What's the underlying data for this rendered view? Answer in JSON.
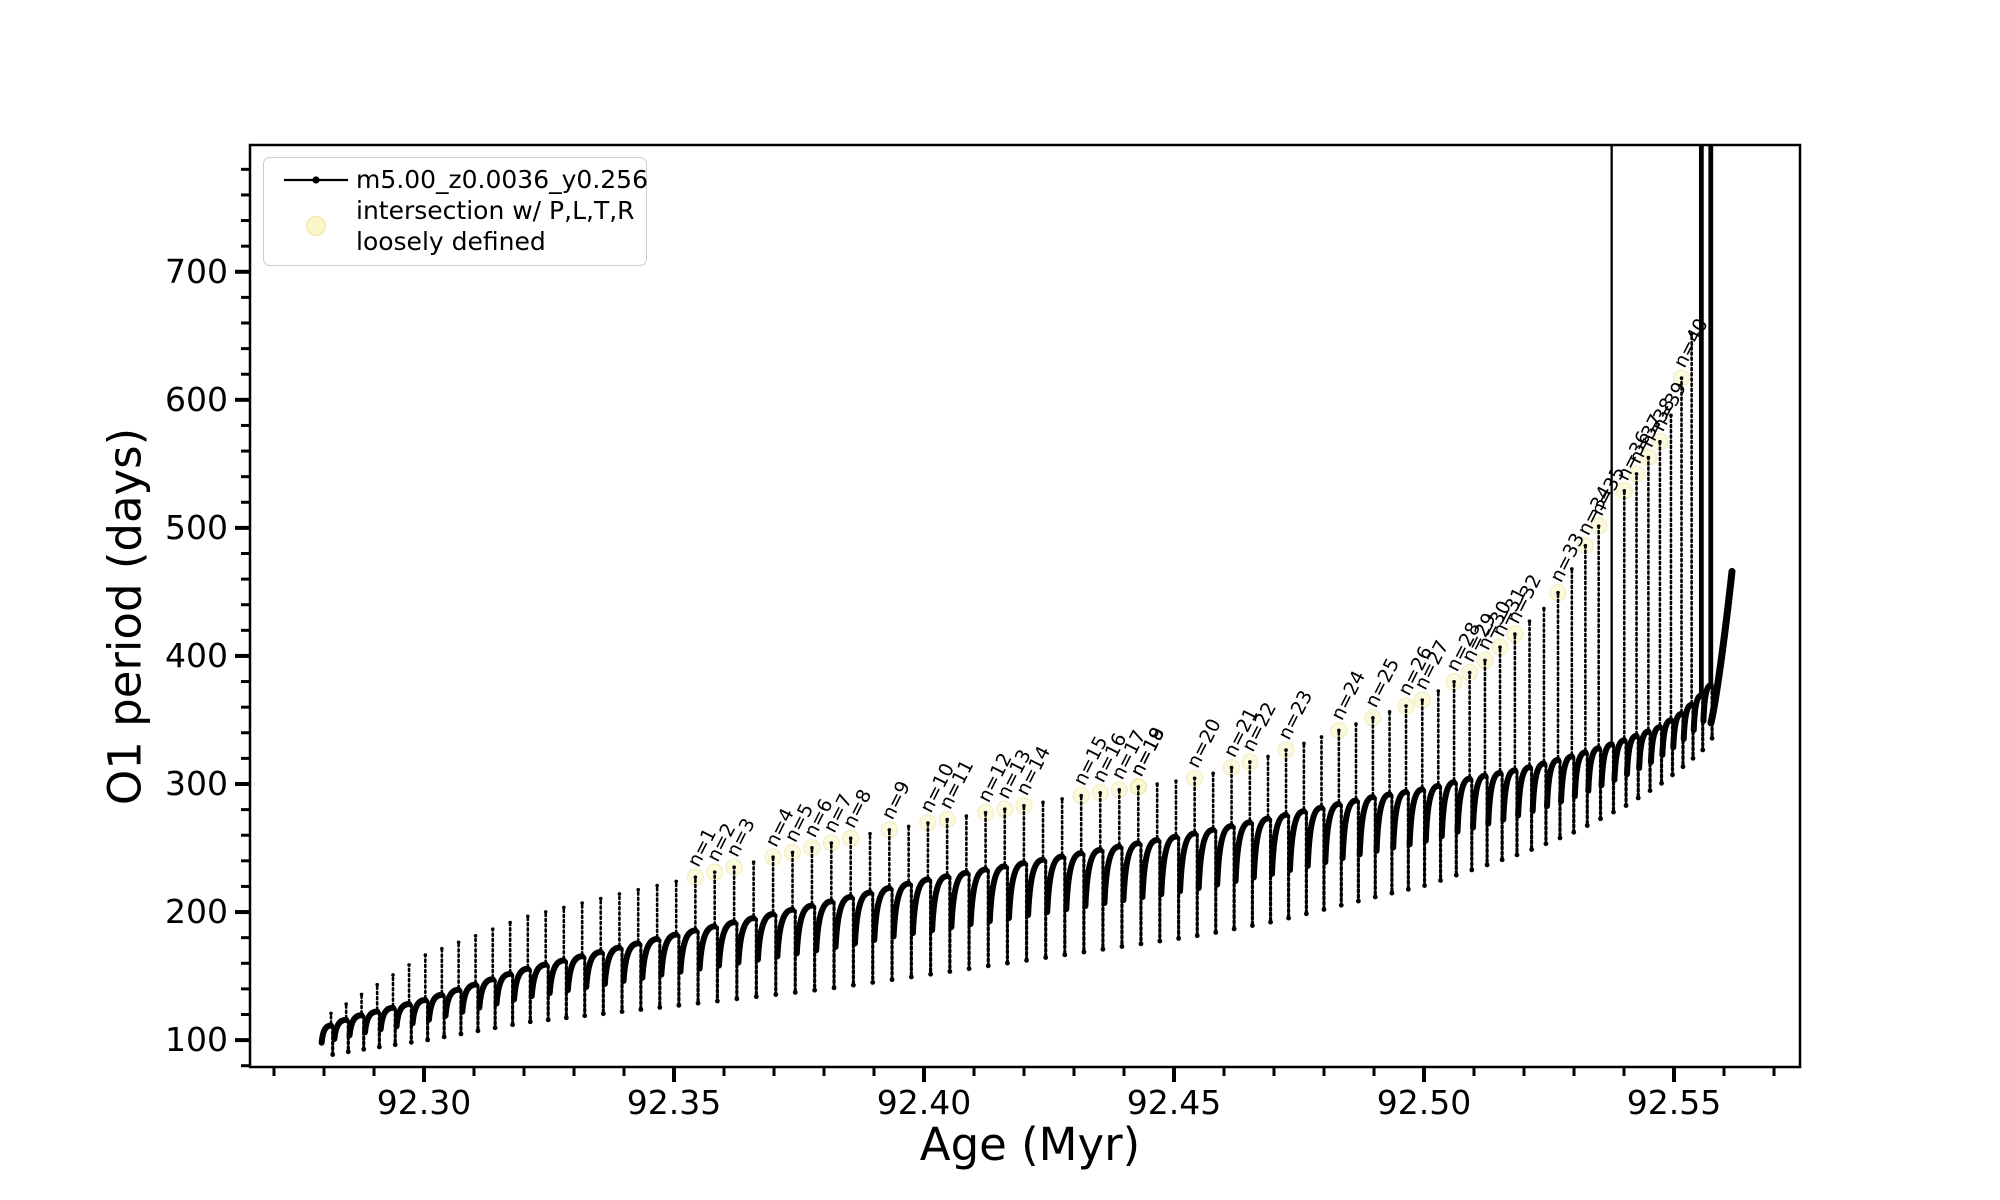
{
  "figure": {
    "background": "#ffffff",
    "accent_black": "#000000"
  },
  "chart_data": {
    "type": "line",
    "title": "",
    "xlabel": "Age (Myr)",
    "ylabel": "O1 period (days)",
    "x_range": [
      92.2652,
      92.5752
    ],
    "y_range": [
      79,
      799
    ],
    "x_ticks_major": [
      92.3,
      92.35,
      92.4,
      92.45,
      92.5,
      92.55
    ],
    "x_tick_labels": [
      "92.30",
      "92.35",
      "92.40",
      "92.45",
      "92.50",
      "92.55"
    ],
    "x_minor_step": 0.01,
    "y_ticks_major": [
      100,
      200,
      300,
      400,
      500,
      600,
      700
    ],
    "y_tick_labels": [
      "100",
      "200",
      "300",
      "400",
      "500",
      "600",
      "700"
    ],
    "y_minor_step": 20,
    "grid": false,
    "legend": {
      "position": "upper-left",
      "entries": [
        {
          "marker": "line-dot",
          "color": "#000000",
          "label": "m5.00_z0.0036_y0.256"
        },
        {
          "marker": "circle",
          "color": "#fbf6c2",
          "edge": "#efe8ad",
          "label_lines": [
            "intersection w/ P,L,T,R",
            "loosely defined"
          ]
        }
      ]
    },
    "series": {
      "name": "m5.00_z0.0036_y0.256",
      "color": "#000000",
      "start_age": 92.279,
      "end_age": 92.5578,
      "period_anchors": [
        [
          92.279,
          0.003
        ],
        [
          92.3,
          0.0033
        ],
        [
          92.33,
          0.0037
        ],
        [
          92.36,
          0.0039
        ],
        [
          92.44,
          0.0038
        ],
        [
          92.47,
          0.0036
        ],
        [
          92.5,
          0.0032
        ],
        [
          92.52,
          0.0029
        ],
        [
          92.535,
          0.0026
        ],
        [
          92.545,
          0.0023
        ],
        [
          92.552,
          0.002
        ],
        [
          92.558,
          0.0018
        ]
      ],
      "spike_peak_anchors": [
        [
          92.279,
          115
        ],
        [
          92.286,
          132
        ],
        [
          92.3,
          166
        ],
        [
          92.32,
          196
        ],
        [
          92.34,
          215
        ],
        [
          92.354,
          227
        ],
        [
          92.37,
          243
        ],
        [
          92.39,
          262
        ],
        [
          92.41,
          276
        ],
        [
          92.43,
          290
        ],
        [
          92.455,
          305
        ],
        [
          92.47,
          323
        ],
        [
          92.49,
          352
        ],
        [
          92.5,
          366
        ],
        [
          92.51,
          389
        ],
        [
          92.517,
          413
        ],
        [
          92.526,
          444
        ],
        [
          92.533,
          491
        ],
        [
          92.541,
          534
        ],
        [
          92.5475,
          569
        ],
        [
          92.5506,
          600
        ],
        [
          92.5533,
          651
        ],
        [
          92.556,
          655
        ],
        [
          92.558,
          560
        ]
      ],
      "shoulder_anchors": [
        [
          92.279,
          108
        ],
        [
          92.286,
          118
        ],
        [
          92.3,
          131
        ],
        [
          92.32,
          155
        ],
        [
          92.35,
          182
        ],
        [
          92.38,
          207
        ],
        [
          92.4,
          225
        ],
        [
          92.43,
          245
        ],
        [
          92.455,
          262
        ],
        [
          92.47,
          274
        ],
        [
          92.49,
          290
        ],
        [
          92.5,
          296
        ],
        [
          92.51,
          305
        ],
        [
          92.52,
          312
        ],
        [
          92.53,
          322
        ],
        [
          92.54,
          334
        ],
        [
          92.547,
          344
        ],
        [
          92.552,
          356
        ],
        [
          92.5565,
          373
        ],
        [
          92.558,
          380
        ]
      ],
      "dip_anchors": [
        [
          92.279,
          87
        ],
        [
          92.286,
          92
        ],
        [
          92.3,
          100
        ],
        [
          92.32,
          114
        ],
        [
          92.35,
          127
        ],
        [
          92.38,
          140
        ],
        [
          92.4,
          151
        ],
        [
          92.43,
          168
        ],
        [
          92.455,
          182
        ],
        [
          92.47,
          193
        ],
        [
          92.49,
          212
        ],
        [
          92.5,
          221
        ],
        [
          92.51,
          234
        ],
        [
          92.52,
          247
        ],
        [
          92.53,
          263
        ],
        [
          92.54,
          283
        ],
        [
          92.547,
          300
        ],
        [
          92.552,
          315
        ],
        [
          92.5565,
          330
        ],
        [
          92.558,
          340
        ]
      ],
      "offscale_spikes": [
        {
          "age": 92.5366,
          "style": "thin",
          "top_days": 799
        },
        {
          "age": 92.5553,
          "style": "thick",
          "top_days": 799
        },
        {
          "age": 92.5572,
          "style": "thick",
          "top_days": 799
        }
      ],
      "final_hook": {
        "from": [
          92.5582,
          368
        ],
        "to": [
          92.5616,
          466
        ]
      }
    },
    "annotations": {
      "rotation_deg": -63,
      "font_px": 19,
      "labels": [
        {
          "text": "n=1",
          "age": 92.354
        },
        {
          "text": "n=2",
          "age": 92.3578
        },
        {
          "text": "n=3",
          "age": 92.3616
        },
        {
          "text": "n=4",
          "age": 92.3694
        },
        {
          "text": "n=5",
          "age": 92.3732
        },
        {
          "text": "n=6",
          "age": 92.377
        },
        {
          "text": "n=7",
          "age": 92.3808
        },
        {
          "text": "n=8",
          "age": 92.3846
        },
        {
          "text": "n=9",
          "age": 92.3936
        },
        {
          "text": "n=10",
          "age": 92.4012
        },
        {
          "text": "n=11",
          "age": 92.405
        },
        {
          "text": "n=12",
          "age": 92.4122
        },
        {
          "text": "n=13",
          "age": 92.416
        },
        {
          "text": "n=14",
          "age": 92.4198
        },
        {
          "text": "n=15",
          "age": 92.4306
        },
        {
          "text": "n=16",
          "age": 92.4338
        },
        {
          "text": "n=17",
          "age": 92.4376
        },
        {
          "text": "n=18",
          "age": 92.4412
        },
        {
          "text": "n=19",
          "age": 92.4446
        },
        {
          "text": "n=20",
          "age": 92.4552
        },
        {
          "text": "n=21",
          "age": 92.4622
        },
        {
          "text": "n=22",
          "age": 92.4652
        },
        {
          "text": "n=23",
          "age": 92.4718
        },
        {
          "text": "n=24",
          "age": 92.4816
        },
        {
          "text": "n=25",
          "age": 92.4886
        },
        {
          "text": "n=26",
          "age": 92.4968
        },
        {
          "text": "n=27",
          "age": 92.4998
        },
        {
          "text": "n=28",
          "age": 92.5056
        },
        {
          "text": "n=29",
          "age": 92.5082
        },
        {
          "text": "n=30",
          "age": 92.5112
        },
        {
          "text": "n=31",
          "age": 92.514
        },
        {
          "text": "n=32",
          "age": 92.5172
        },
        {
          "text": "n=33",
          "age": 92.526
        },
        {
          "text": "n=34",
          "age": 92.5326
        },
        {
          "text": "n=35",
          "age": 92.535
        },
        {
          "text": "n=36",
          "age": 92.5406
        },
        {
          "text": "n=37",
          "age": 92.5428
        },
        {
          "text": "n=38",
          "age": 92.5456
        },
        {
          "text": "n=39",
          "age": 92.5478
        },
        {
          "text": "n=40",
          "age": 92.5506
        }
      ]
    },
    "intersection_marker": {
      "color": "#fbf6c2",
      "edge": "#e8e2a0",
      "radius": 8,
      "opacity": 0.55
    }
  }
}
